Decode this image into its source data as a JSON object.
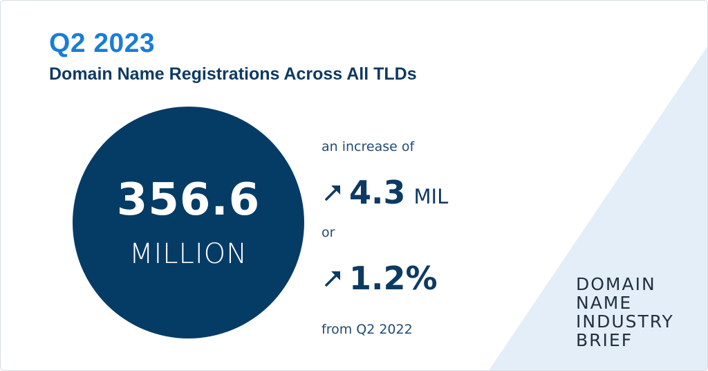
{
  "header": {
    "year": "Q2 2023",
    "subtitle": "Domain Name Registrations Across All TLDs"
  },
  "total": {
    "number": "356.6",
    "unit": "MILLION"
  },
  "change": {
    "intro": "an increase of",
    "absolute": {
      "value": "4.3",
      "unit": "MIL"
    },
    "connector": "or",
    "percent": {
      "value": "1.2%"
    },
    "comparison": "from Q2 2022",
    "arrow_icon": "arrow-up-right-icon"
  },
  "brand": {
    "lines": [
      "DOMAIN",
      "NAME",
      "INDUSTRY",
      "BRIEF"
    ]
  },
  "colors": {
    "accent_blue": "#1a7dd6",
    "navy": "#053c66",
    "triangle_tint": "#e3eef8"
  }
}
